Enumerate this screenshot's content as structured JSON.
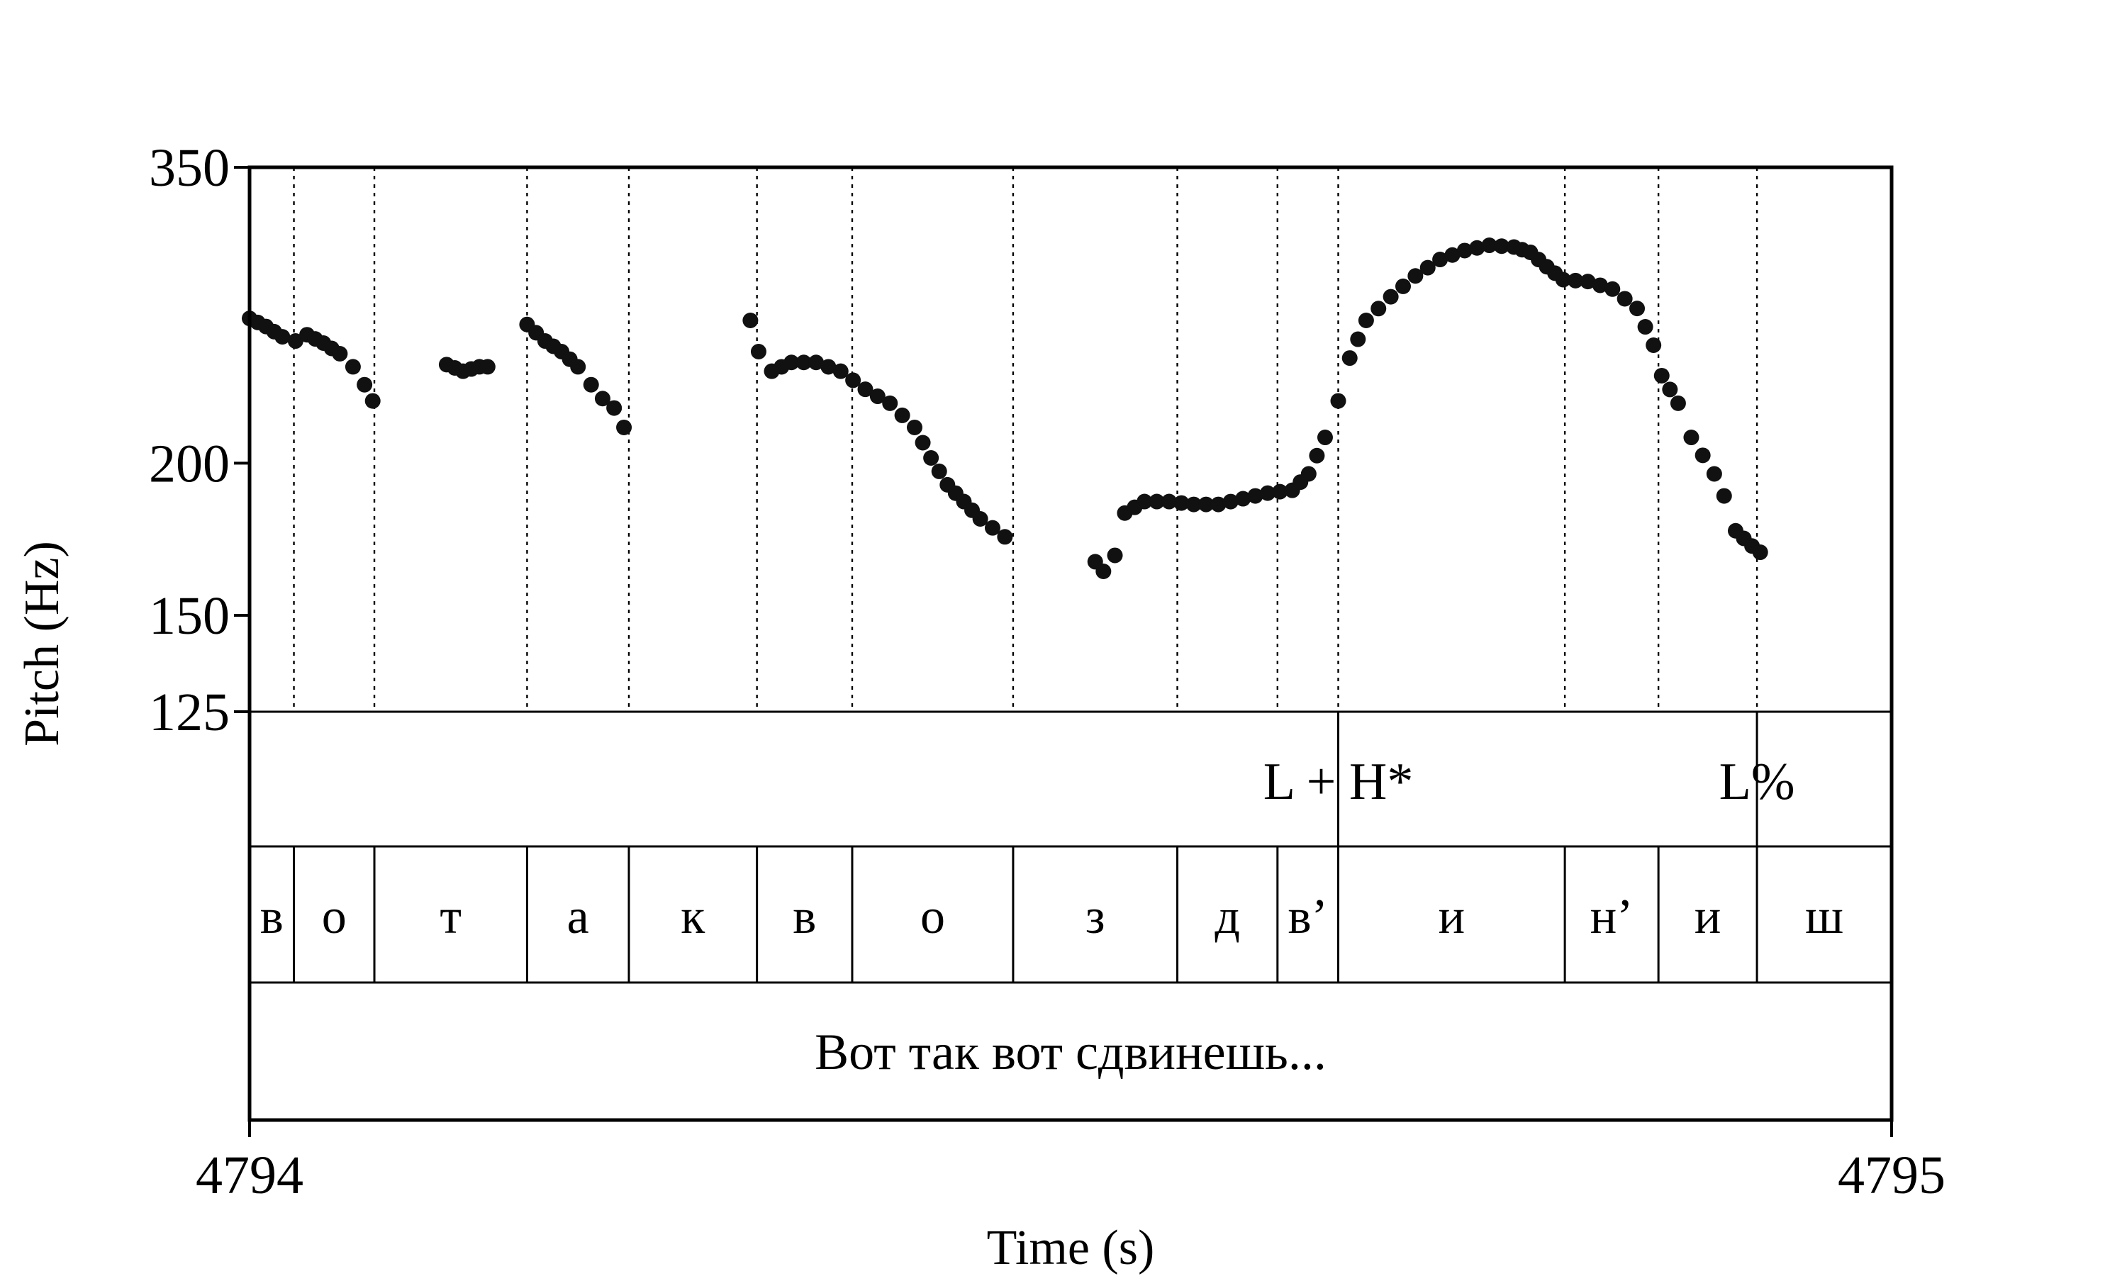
{
  "chart_data": {
    "type": "scatter",
    "xlabel": "Time (s)",
    "ylabel": "Pitch (Hz)",
    "x_range": [
      4794,
      4795
    ],
    "x_tick_labels": [
      "4794",
      "4795"
    ],
    "y_range": [
      125,
      350
    ],
    "y_scale": "log",
    "y_ticks": [
      350,
      200,
      150,
      125
    ],
    "grid": "dotted vertical lines at segment boundaries",
    "boundaries": [
      0.027,
      0.076,
      0.169,
      0.231,
      0.309,
      0.367,
      0.465,
      0.565,
      0.626,
      0.663,
      0.801,
      0.858,
      0.918
    ],
    "tone_tier": [
      {
        "label": "L + H*",
        "time": 0.663
      },
      {
        "label": "L%",
        "time": 0.918
      }
    ],
    "segment_tier": [
      {
        "label": "в",
        "start": 0.0,
        "end": 0.027
      },
      {
        "label": "о",
        "start": 0.027,
        "end": 0.076
      },
      {
        "label": "т",
        "start": 0.076,
        "end": 0.169
      },
      {
        "label": "а",
        "start": 0.169,
        "end": 0.231
      },
      {
        "label": "к",
        "start": 0.231,
        "end": 0.309
      },
      {
        "label": "в",
        "start": 0.309,
        "end": 0.367
      },
      {
        "label": "о",
        "start": 0.367,
        "end": 0.465
      },
      {
        "label": "з",
        "start": 0.465,
        "end": 0.565
      },
      {
        "label": "д",
        "start": 0.565,
        "end": 0.626
      },
      {
        "label": "в’",
        "start": 0.626,
        "end": 0.663
      },
      {
        "label": "и",
        "start": 0.663,
        "end": 0.801
      },
      {
        "label": "н’",
        "start": 0.801,
        "end": 0.858
      },
      {
        "label": "и",
        "start": 0.858,
        "end": 0.918
      },
      {
        "label": "ш",
        "start": 0.918,
        "end": 1.0
      }
    ],
    "sentence": "Вот так вот сдвинешь...",
    "series": [
      {
        "points": [
          [
            0.0,
            263
          ],
          [
            0.01,
            259
          ],
          [
            0.02,
            254
          ],
          [
            0.028,
            252
          ],
          [
            0.035,
            255
          ],
          [
            0.045,
            251
          ],
          [
            0.055,
            246
          ],
          [
            0.063,
            240
          ],
          [
            0.07,
            232
          ],
          [
            0.075,
            225
          ]
        ]
      },
      {
        "points": [
          [
            0.12,
            241
          ],
          [
            0.13,
            238
          ],
          [
            0.14,
            240
          ],
          [
            0.145,
            240
          ]
        ]
      },
      {
        "points": [
          [
            0.169,
            260
          ],
          [
            0.18,
            252
          ],
          [
            0.19,
            247
          ],
          [
            0.2,
            240
          ],
          [
            0.208,
            232
          ],
          [
            0.215,
            226
          ],
          [
            0.222,
            222
          ],
          [
            0.228,
            214
          ]
        ]
      },
      {
        "points": [
          [
            0.305,
            262
          ],
          [
            0.31,
            247
          ],
          [
            0.318,
            238
          ],
          [
            0.33,
            242
          ],
          [
            0.345,
            242
          ],
          [
            0.36,
            238
          ],
          [
            0.375,
            230
          ],
          [
            0.39,
            224
          ],
          [
            0.405,
            214
          ],
          [
            0.415,
            202
          ],
          [
            0.425,
            192
          ],
          [
            0.435,
            186
          ],
          [
            0.445,
            180
          ],
          [
            0.46,
            174
          ]
        ]
      },
      {
        "points": [
          [
            0.515,
            166
          ],
          [
            0.52,
            163
          ],
          [
            0.527,
            168
          ],
          [
            0.533,
            182
          ],
          [
            0.545,
            186
          ],
          [
            0.56,
            186
          ],
          [
            0.575,
            185
          ],
          [
            0.59,
            185
          ],
          [
            0.605,
            187
          ],
          [
            0.62,
            189
          ],
          [
            0.635,
            190
          ],
          [
            0.645,
            196
          ],
          [
            0.655,
            210
          ],
          [
            0.663,
            225
          ],
          [
            0.67,
            244
          ],
          [
            0.68,
            262
          ],
          [
            0.695,
            274
          ],
          [
            0.71,
            285
          ],
          [
            0.725,
            294
          ],
          [
            0.74,
            299
          ],
          [
            0.755,
            302
          ],
          [
            0.77,
            301
          ],
          [
            0.78,
            298
          ],
          [
            0.79,
            290
          ],
          [
            0.8,
            283
          ],
          [
            0.815,
            282
          ],
          [
            0.83,
            278
          ],
          [
            0.845,
            268
          ],
          [
            0.855,
            250
          ]
        ]
      },
      {
        "points": [
          [
            0.86,
            236
          ],
          [
            0.87,
            224
          ],
          [
            0.878,
            210
          ],
          [
            0.885,
            203
          ],
          [
            0.892,
            196
          ],
          [
            0.898,
            188
          ],
          [
            0.905,
            176
          ],
          [
            0.915,
            171
          ],
          [
            0.92,
            169
          ]
        ]
      }
    ]
  }
}
